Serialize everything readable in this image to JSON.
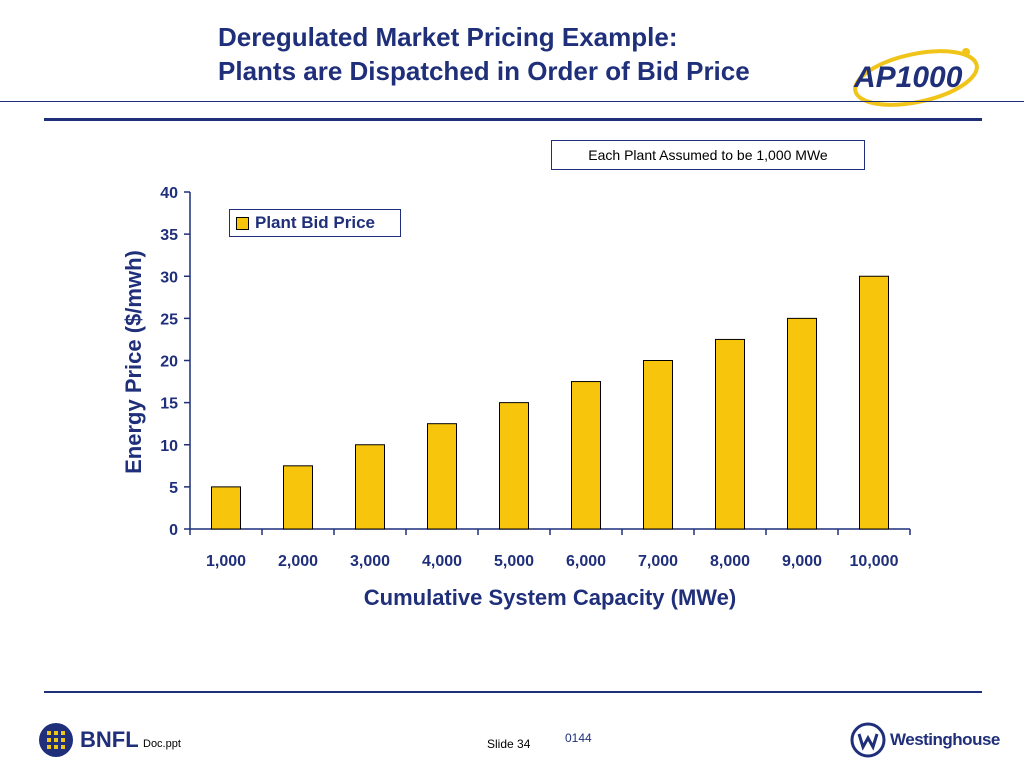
{
  "slide": {
    "title_line1": "Deregulated Market Pricing Example:",
    "title_line2": "Plants are Dispatched in Order of Bid Price",
    "note": "Each Plant Assumed to be 1,000 MWe",
    "logo_text": "AP1000",
    "footer": {
      "left_logo": "BNFL",
      "doc": "Doc.ppt",
      "slide": "Slide 34",
      "code": "0144",
      "right_logo": "Westinghouse"
    }
  },
  "colors": {
    "navy": "#1f2f7a",
    "bar": "#f7c50c",
    "logo_gold": "#f0c419"
  },
  "chart_data": {
    "type": "bar",
    "categories": [
      "1,000",
      "2,000",
      "3,000",
      "4,000",
      "5,000",
      "6,000",
      "7,000",
      "8,000",
      "9,000",
      "10,000"
    ],
    "series": [
      {
        "name": "Plant Bid Price",
        "values": [
          5,
          7.5,
          10,
          12.5,
          15,
          17.5,
          20,
          22.5,
          25,
          30
        ]
      }
    ],
    "xlabel": "Cumulative System Capacity (MWe)",
    "ylabel": "Energy Price ($/mwh)",
    "ylim": [
      0,
      40
    ],
    "yticks": [
      "0",
      "5",
      "10",
      "15",
      "20",
      "25",
      "30",
      "35",
      "40"
    ],
    "grid": false,
    "legend_position": "top-left"
  }
}
